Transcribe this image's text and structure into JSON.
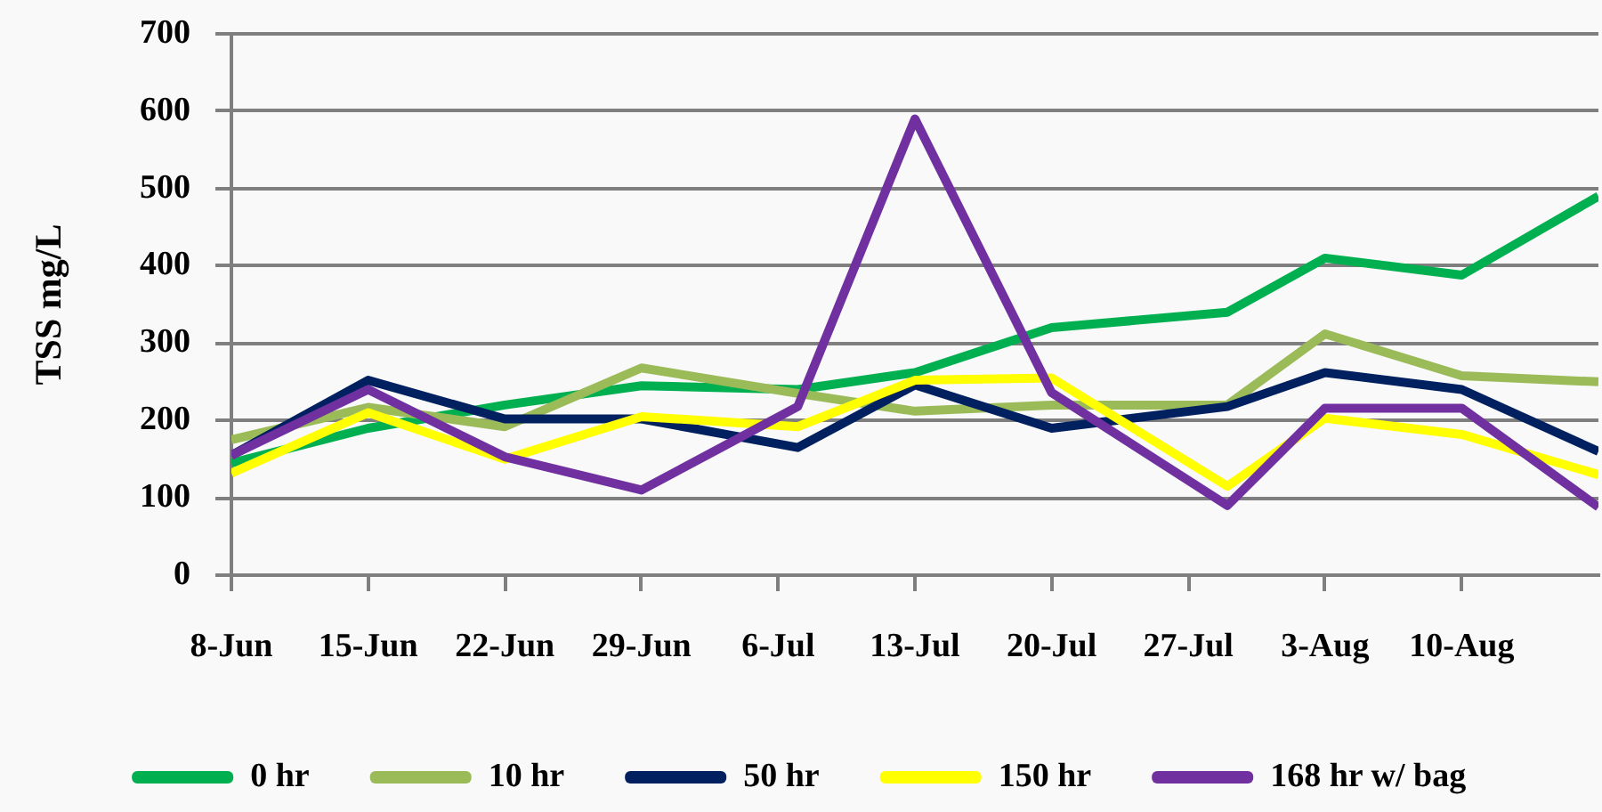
{
  "chart_data": {
    "type": "line",
    "ylabel": "TSS mg/L",
    "x": [
      "--06-08",
      "--06-15",
      "--06-22",
      "--06-29",
      "--07-07",
      "--07-13",
      "--07-20",
      "--07-29",
      "--08-03",
      "--08-10",
      "--08-17"
    ],
    "xlim": [
      "--06-08",
      "--08-17"
    ],
    "xticks": [
      {
        "value": "--06-08",
        "label": "8-Jun"
      },
      {
        "value": "--06-15",
        "label": "15-Jun"
      },
      {
        "value": "--06-22",
        "label": "22-Jun"
      },
      {
        "value": "--06-29",
        "label": "29-Jun"
      },
      {
        "value": "--07-06",
        "label": "6-Jul"
      },
      {
        "value": "--07-13",
        "label": "13-Jul"
      },
      {
        "value": "--07-20",
        "label": "20-Jul"
      },
      {
        "value": "--07-27",
        "label": "27-Jul"
      },
      {
        "value": "--08-03",
        "label": "3-Aug"
      },
      {
        "value": "--08-10",
        "label": "10-Aug"
      }
    ],
    "ylim": [
      0,
      700
    ],
    "yticks": [
      0,
      100,
      200,
      300,
      400,
      500,
      600,
      700
    ],
    "grid": "y",
    "legend": "bottom",
    "series": [
      {
        "name": "0 hr",
        "color": "#00b050",
        "values": [
          145,
          190,
          220,
          245,
          240,
          262,
          320,
          340,
          410,
          388,
          490
        ]
      },
      {
        "name": "10 hr",
        "color": "#9bbb59",
        "values": [
          175,
          217,
          192,
          268,
          235,
          212,
          220,
          220,
          312,
          258,
          250
        ]
      },
      {
        "name": "50 hr",
        "color": "#002060",
        "values": [
          155,
          252,
          202,
          202,
          165,
          246,
          190,
          218,
          262,
          240,
          160
        ]
      },
      {
        "name": "150 hr",
        "color": "#ffff00",
        "values": [
          132,
          210,
          150,
          205,
          192,
          252,
          255,
          115,
          203,
          182,
          130
        ]
      },
      {
        "name": "168 hr w/ bag",
        "color": "#7030a0",
        "values": [
          155,
          240,
          153,
          110,
          218,
          590,
          236,
          90,
          216,
          216,
          88
        ]
      }
    ]
  }
}
